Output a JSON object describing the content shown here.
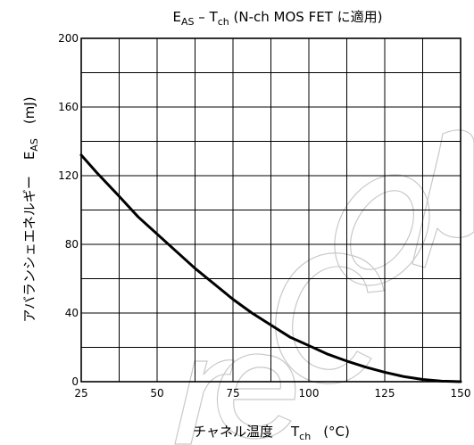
{
  "chart_data": {
    "type": "line",
    "title": "E_AS – T_ch (N-ch MOS FET に適用)",
    "title_main": "E",
    "title_main_sub": "AS",
    "title_sep": " – T",
    "title_sep_sub": "ch",
    "title_rest": " (N-ch MOS FET に適用)",
    "xlabel": "チャネル温度  T_ch  (°C)",
    "xlabel_main": "チャネル温度",
    "xlabel_sym": "T",
    "xlabel_sym_sub": "ch",
    "xlabel_unit": "(°C)",
    "ylabel": "アバランシェエネルギー  E_AS  (mJ)",
    "ylabel_main": "アバランシェエネルギー",
    "ylabel_sym": "E",
    "ylabel_sym_sub": "AS",
    "ylabel_unit": "(mJ)",
    "xlim": [
      25,
      150
    ],
    "ylim": [
      0,
      200
    ],
    "x_ticks": [
      25,
      50,
      75,
      100,
      125,
      150
    ],
    "y_ticks": [
      0,
      40,
      80,
      120,
      160,
      200
    ],
    "x_minor_step": 12.5,
    "y_minor_step": 20,
    "grid": true,
    "series": [
      {
        "x": [
          25,
          30,
          37.5,
          43.75,
          50,
          56.25,
          62.5,
          68.75,
          75,
          81.25,
          87.5,
          93.75,
          100,
          106.25,
          112.5,
          118.75,
          125,
          131.25,
          137.5,
          143.75,
          150
        ],
        "y": [
          132,
          122,
          108,
          96,
          86,
          76,
          66,
          57,
          48,
          40,
          33,
          26,
          21,
          16,
          12,
          8.5,
          5.5,
          3,
          1.3,
          0.3,
          0
        ]
      }
    ],
    "watermark_color": "#c8c8c8"
  }
}
